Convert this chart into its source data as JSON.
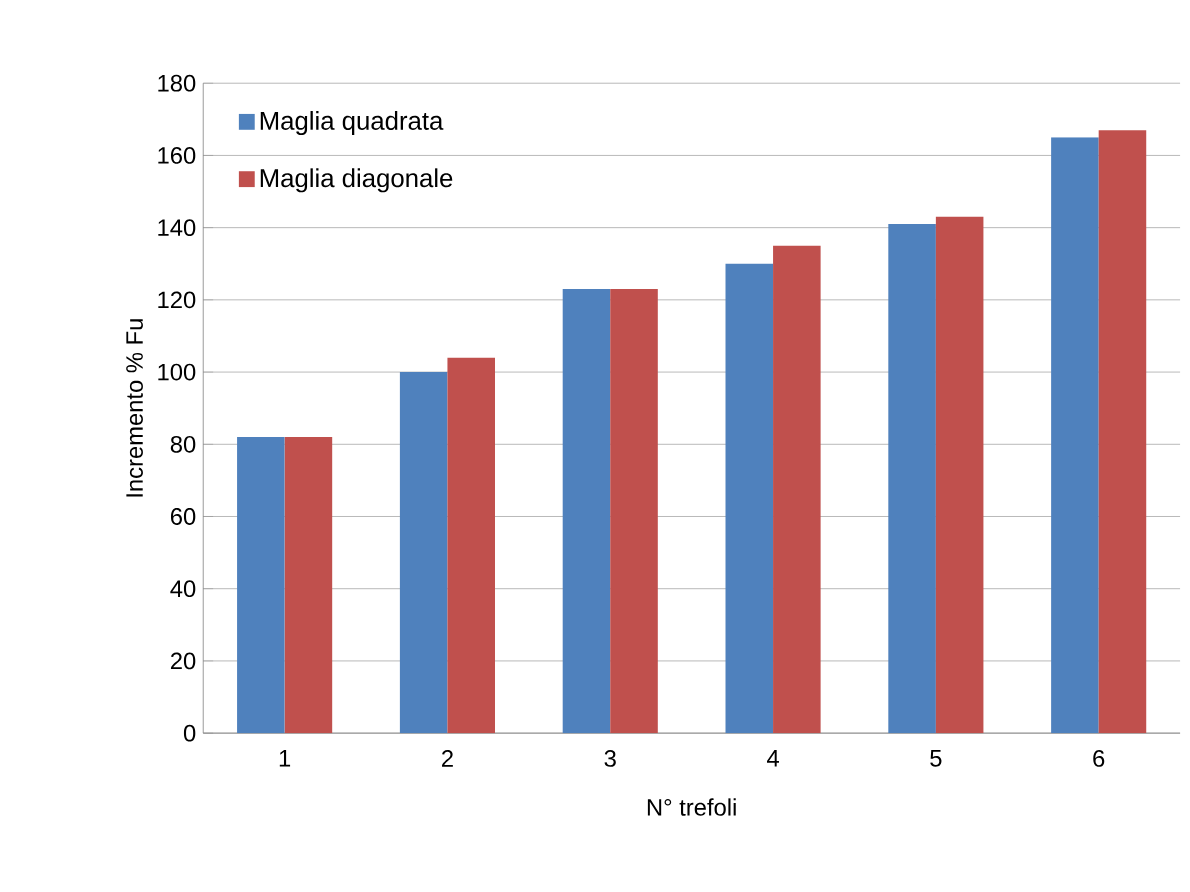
{
  "chart_data": {
    "type": "bar",
    "xlabel": "N° trefoli",
    "ylabel": "Incremento % Fu",
    "categories": [
      "1",
      "2",
      "3",
      "4",
      "5",
      "6"
    ],
    "series": [
      {
        "name": "Maglia quadrata",
        "color": "#4f81bd",
        "values": [
          82,
          100,
          123,
          130,
          141,
          165
        ]
      },
      {
        "name": "Maglia diagonale",
        "color": "#c0504d",
        "values": [
          82,
          104,
          123,
          135,
          143,
          167
        ]
      }
    ],
    "ylim": [
      0,
      180
    ],
    "yticks": [
      0,
      20,
      40,
      60,
      80,
      100,
      120,
      140,
      160,
      180
    ],
    "grid": "y",
    "legend": "top left"
  }
}
